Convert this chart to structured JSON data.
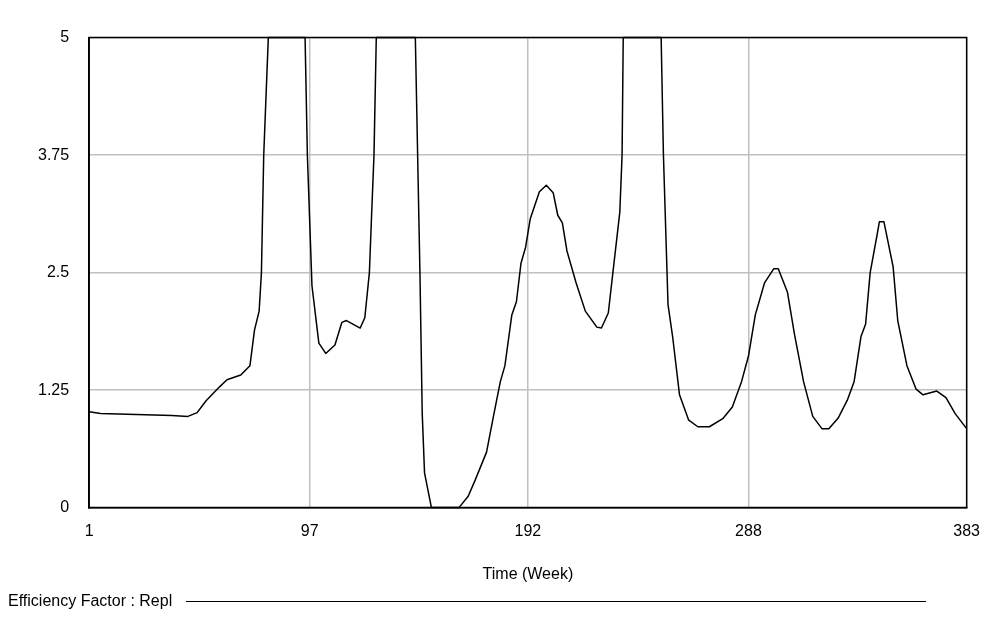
{
  "chart_data": {
    "type": "line",
    "xlabel": "Time (Week)",
    "x": [
      1,
      6,
      37,
      44,
      48,
      52,
      58,
      61,
      67,
      71,
      73,
      75,
      76,
      77,
      79,
      95,
      96,
      98,
      101,
      104,
      108,
      111,
      113,
      119,
      121,
      123,
      124,
      125,
      126,
      143,
      144,
      145,
      146,
      147,
      150,
      162,
      166,
      169,
      174,
      177,
      180,
      182,
      185,
      187,
      189,
      191,
      193,
      197,
      200,
      203,
      205,
      207,
      209,
      213,
      217,
      222,
      224,
      227,
      229,
      232,
      233,
      233.5,
      250,
      251,
      253,
      255,
      258,
      262,
      266,
      271,
      277,
      281,
      285,
      288,
      291,
      295,
      299,
      301,
      305,
      308,
      312,
      316,
      320,
      323,
      327,
      331,
      334,
      337,
      339,
      341,
      344,
      345,
      347,
      351,
      353,
      357,
      361,
      364,
      370,
      374,
      378,
      383
    ],
    "series": [
      {
        "name": "Efficiency Factor : Repl",
        "color": "#000000",
        "values": [
          1.02,
          1.0,
          0.98,
          0.97,
          1.01,
          1.14,
          1.29,
          1.36,
          1.41,
          1.51,
          1.89,
          2.09,
          2.5,
          3.75,
          5,
          5,
          3.75,
          2.36,
          1.75,
          1.64,
          1.73,
          1.97,
          1.99,
          1.91,
          2.02,
          2.5,
          3.14,
          3.75,
          5,
          5,
          3.75,
          2.5,
          1.0,
          0.37,
          0,
          0,
          0.12,
          0.29,
          0.59,
          0.97,
          1.34,
          1.51,
          2.05,
          2.19,
          2.6,
          2.77,
          3.07,
          3.36,
          3.43,
          3.35,
          3.11,
          3.03,
          2.73,
          2.39,
          2.09,
          1.92,
          1.91,
          2.07,
          2.5,
          3.14,
          3.75,
          5,
          5,
          3.75,
          2.16,
          1.82,
          1.2,
          0.93,
          0.86,
          0.86,
          0.95,
          1.07,
          1.34,
          1.61,
          2.05,
          2.39,
          2.54,
          2.54,
          2.29,
          1.85,
          1.34,
          0.97,
          0.84,
          0.84,
          0.95,
          1.14,
          1.34,
          1.82,
          1.95,
          2.5,
          2.9,
          3.04,
          3.04,
          2.56,
          1.99,
          1.51,
          1.26,
          1.2,
          1.24,
          1.17,
          1.0,
          0.84
        ]
      }
    ],
    "xlim": [
      1,
      383
    ],
    "xticks": [
      1,
      97,
      192,
      288,
      383
    ],
    "ylim": [
      0,
      5
    ],
    "yticks": [
      0,
      1.25,
      2.5,
      3.75,
      5
    ],
    "grid": true,
    "legend": "bottom",
    "marker": "none",
    "line_style": "solid"
  }
}
